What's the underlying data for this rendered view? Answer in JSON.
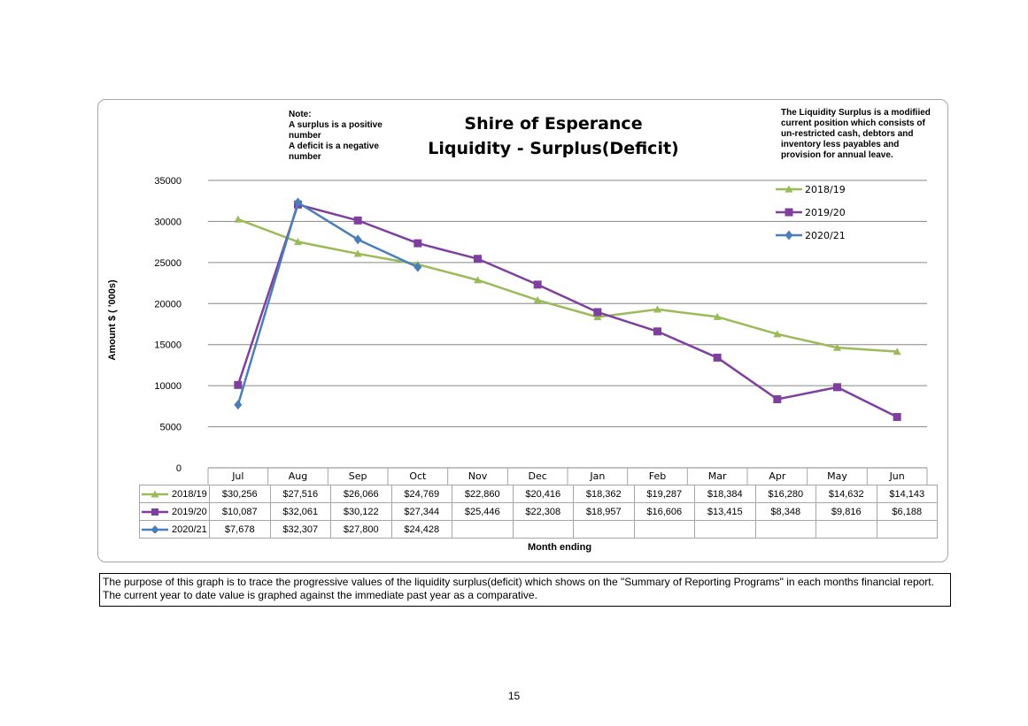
{
  "chart_data": {
    "type": "line",
    "title_lines": [
      "Shire of Esperance",
      "Liquidity - Surplus(Deficit)"
    ],
    "note": "Note:\nA surplus is a positive number\nA deficit is a negative number",
    "side_note": "The Liquidity Surplus is a modifiied current position which consists of  un-restricted cash, debtors and inventory less payables and provision for annual leave.",
    "xlabel": "Month ending",
    "ylabel": "Amount $ ( '000s)",
    "ylim": [
      0,
      35000
    ],
    "yticks": [
      0,
      5000,
      10000,
      15000,
      20000,
      25000,
      30000,
      35000
    ],
    "ytick_labels": [
      "0",
      "5000",
      "10000",
      "15000",
      "20000",
      "25000",
      "30000",
      "35000"
    ],
    "grid": true,
    "legend_position": "top-right",
    "categories": [
      "Jul",
      "Aug",
      "Sep",
      "Oct",
      "Nov",
      "Dec",
      "Jan",
      "Feb",
      "Mar",
      "Apr",
      "May",
      "Jun"
    ],
    "series": [
      {
        "name": "2018/19",
        "color": "#9bbb59",
        "marker": "triangle",
        "values": [
          30256,
          27516,
          26066,
          24769,
          22860,
          20416,
          18362,
          19287,
          18384,
          16280,
          14632,
          14143
        ],
        "labels": [
          "$30,256",
          "$27,516",
          "$26,066",
          "$24,769",
          "$22,860",
          "$20,416",
          "$18,362",
          "$19,287",
          "$18,384",
          "$16,280",
          "$14,632",
          "$14,143"
        ]
      },
      {
        "name": "2019/20",
        "color": "#7f3f9f",
        "marker": "square",
        "values": [
          10087,
          32061,
          30122,
          27344,
          25446,
          22308,
          18957,
          16606,
          13415,
          8348,
          9816,
          6188
        ],
        "labels": [
          "$10,087",
          "$32,061",
          "$30,122",
          "$27,344",
          "$25,446",
          "$22,308",
          "$18,957",
          "$16,606",
          "$13,415",
          "$8,348",
          "$9,816",
          "$6,188"
        ]
      },
      {
        "name": "2020/21",
        "color": "#4a7ebb",
        "marker": "diamond",
        "values": [
          7678,
          32307,
          27800,
          24428,
          null,
          null,
          null,
          null,
          null,
          null,
          null,
          null
        ],
        "labels": [
          "$7,678",
          "$32,307",
          "$27,800",
          "$24,428",
          "",
          "",
          "",
          "",
          "",
          "",
          "",
          ""
        ]
      }
    ]
  },
  "caption": "The purpose of this graph is to trace the progressive values of the liquidity surplus(deficit) which shows on the \"Summary of Reporting Programs\" in each months financial report. The current year to date value is graphed against the immediate past year as a comparative.",
  "page_number": "15"
}
